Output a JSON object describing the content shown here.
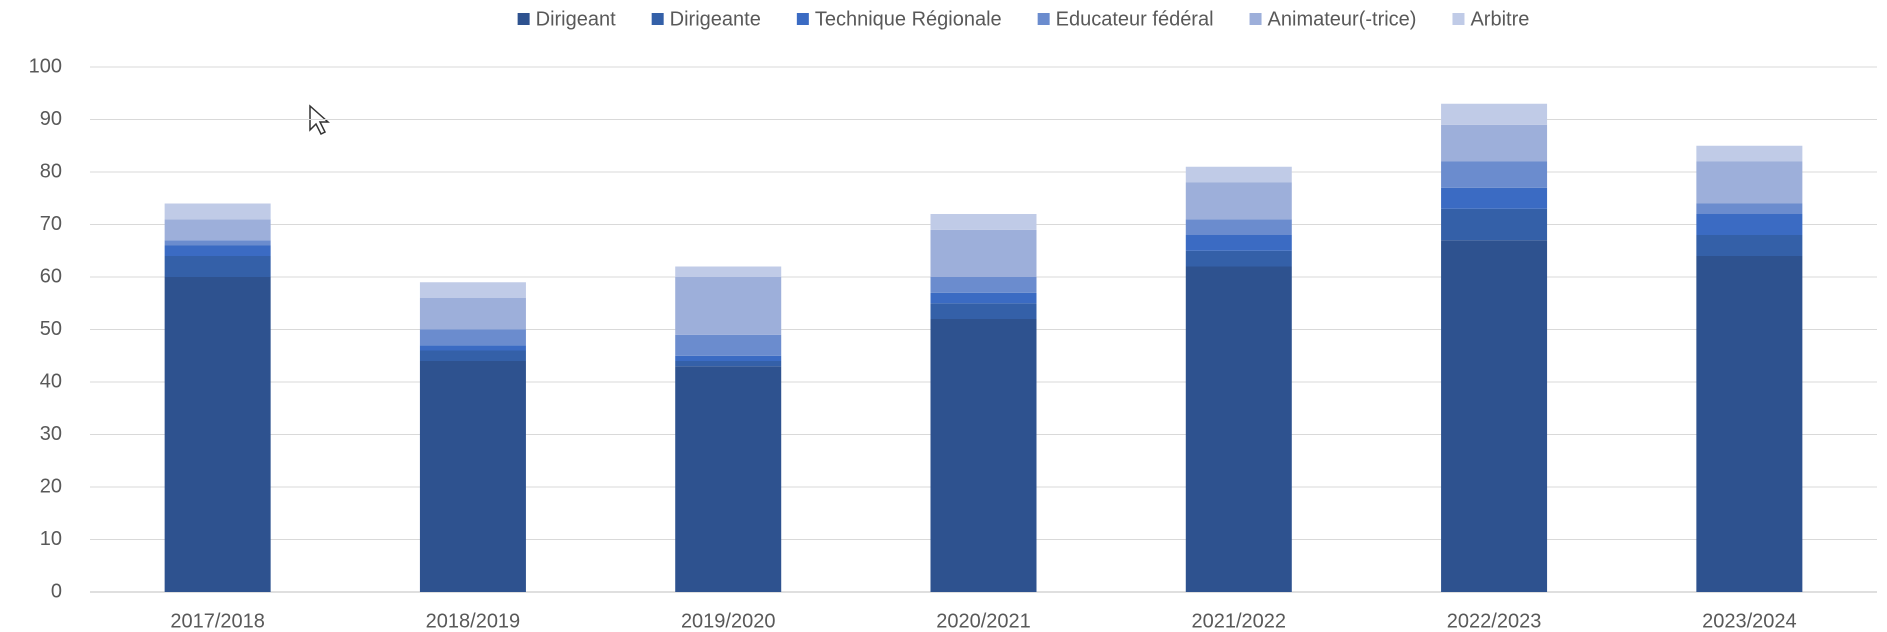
{
  "chart_data": {
    "type": "stacked_bar",
    "categories": [
      "2017/2018",
      "2018/2019",
      "2019/2020",
      "2020/2021",
      "2021/2022",
      "2022/2023",
      "2023/2024"
    ],
    "series": [
      {
        "name": "Dirigeant",
        "color": "#2e528f",
        "values": [
          60,
          44,
          43,
          52,
          62,
          67,
          64
        ]
      },
      {
        "name": "Dirigeante",
        "color": "#3460a8",
        "values": [
          4,
          2,
          1,
          3,
          3,
          6,
          4
        ]
      },
      {
        "name": "Technique Régionale",
        "color": "#3b6bc3",
        "values": [
          2,
          1,
          1,
          2,
          3,
          4,
          4
        ]
      },
      {
        "name": "Educateur fédéral",
        "color": "#6b8cce",
        "values": [
          1,
          3,
          4,
          3,
          3,
          5,
          2
        ]
      },
      {
        "name": "Animateur(-trice)",
        "color": "#9dafda",
        "values": [
          4,
          6,
          11,
          9,
          7,
          7,
          8
        ]
      },
      {
        "name": "Arbitre",
        "color": "#c0cbe7",
        "values": [
          3,
          3,
          2,
          3,
          3,
          4,
          3
        ]
      }
    ],
    "ylim": [
      0,
      100
    ],
    "yticks": [
      0,
      10,
      20,
      30,
      40,
      50,
      60,
      70,
      80,
      90,
      100
    ],
    "grid": true,
    "legend": "top"
  }
}
